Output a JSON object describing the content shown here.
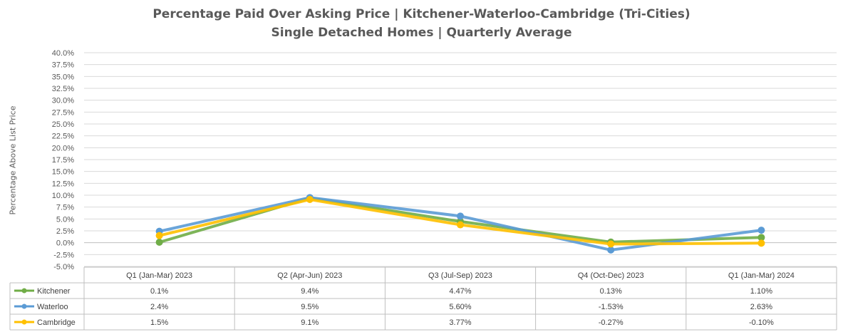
{
  "chart_data": {
    "type": "line",
    "title": "Percentage Paid Over Asking Price | Kitchener-Waterloo-Cambridge (Tri-Cities)",
    "subtitle": "Single Detached Homes | Quarterly Average",
    "ylabel": "Percentage Above List Price",
    "xlabel": "",
    "ylim": [
      -5.0,
      40.0
    ],
    "ytick_step": 2.5,
    "yticks": [
      "40.0%",
      "37.5%",
      "35.0%",
      "32.5%",
      "30.0%",
      "27.5%",
      "25.0%",
      "22.5%",
      "20.0%",
      "17.5%",
      "15.0%",
      "12.5%",
      "10.0%",
      "7.5%",
      "5.0%",
      "2.5%",
      "0.0%",
      "-2.5%",
      "-5.0%"
    ],
    "categories": [
      "Q1 (Jan-Mar) 2023",
      "Q2 (Apr-Jun) 2023",
      "Q3 (Jul-Sep) 2023",
      "Q4 (Oct-Dec) 2023",
      "Q1 (Jan-Mar) 2024"
    ],
    "series": [
      {
        "name": "Kitchener",
        "color": "#70ad47",
        "values": [
          0.1,
          9.4,
          4.47,
          0.13,
          1.1
        ],
        "labels": [
          "0.1%",
          "9.4%",
          "4.47%",
          "0.13%",
          "1.10%"
        ]
      },
      {
        "name": "Waterloo",
        "color": "#5b9bd5",
        "values": [
          2.4,
          9.5,
          5.6,
          -1.53,
          2.63
        ],
        "labels": [
          "2.4%",
          "9.5%",
          "5.60%",
          "-1.53%",
          "2.63%"
        ]
      },
      {
        "name": "Cambridge",
        "color": "#ffc000",
        "values": [
          1.5,
          9.1,
          3.77,
          -0.27,
          -0.1
        ],
        "labels": [
          "1.5%",
          "9.1%",
          "3.77%",
          "-0.27%",
          "-0.10%"
        ]
      }
    ],
    "grid": true,
    "legend": "data table"
  }
}
